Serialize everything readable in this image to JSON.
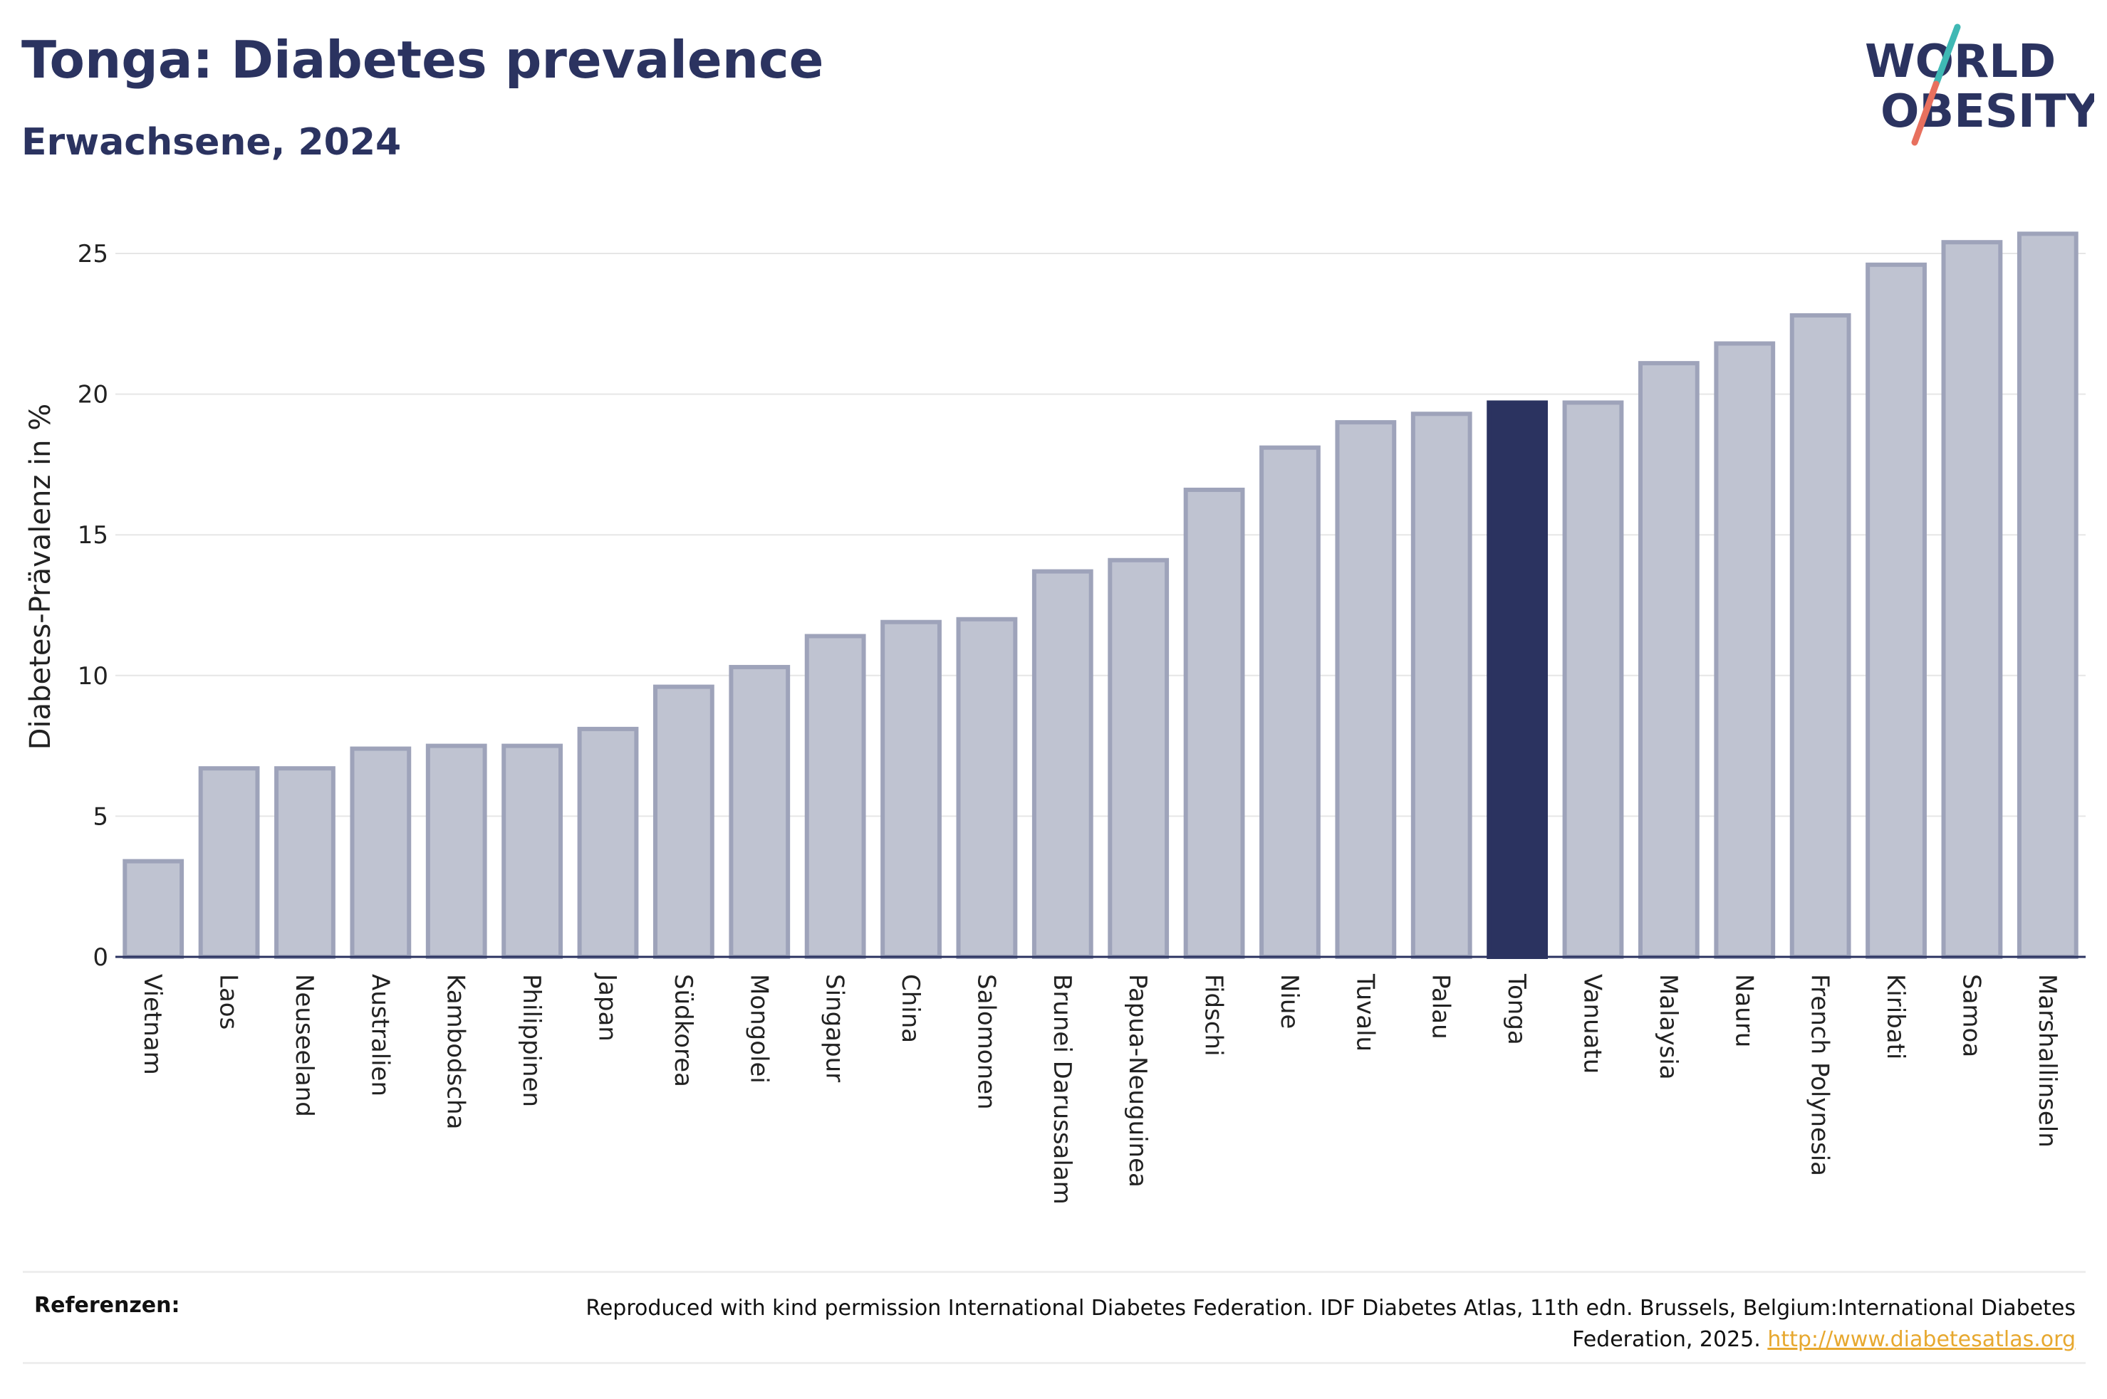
{
  "header": {
    "title": "Tonga: Diabetes prevalence",
    "subtitle": "Erwachsene, 2024"
  },
  "logo": {
    "line1": "WORLD",
    "line2": "OBESITY",
    "colors": {
      "text": "#2b3360",
      "slash_teal": "#3fb8b4",
      "slash_coral": "#e8705e"
    }
  },
  "colors": {
    "bar": "#bfc3d1",
    "bar_stroke": "#9ea3ba",
    "highlight": "#2b3360",
    "gridline": "#e6e6e6",
    "axis": "#2b3360"
  },
  "chart_data": {
    "type": "bar",
    "ylabel": "Diabetes-Prävalenz in %",
    "xlabel": "",
    "ylim": [
      0,
      26
    ],
    "yticks": [
      0,
      5,
      10,
      15,
      20,
      25
    ],
    "grid": true,
    "highlight": "Tonga",
    "categories": [
      "Vietnam",
      "Laos",
      "Neuseeland",
      "Australien",
      "Kambodscha",
      "Philippinen",
      "Japan",
      "Südkorea",
      "Mongolei",
      "Singapur",
      "China",
      "Salomonen",
      "Brunei Darussalam",
      "Papua-Neuguinea",
      "Fidschi",
      "Niue",
      "Tuvalu",
      "Palau",
      "Tonga",
      "Vanuatu",
      "Malaysia",
      "Nauru",
      "French Polynesia",
      "Kiribati",
      "Samoa",
      "Marshallinseln"
    ],
    "values": [
      3.4,
      6.7,
      6.7,
      7.4,
      7.5,
      7.5,
      8.1,
      9.6,
      10.3,
      11.4,
      11.9,
      12.0,
      13.7,
      14.1,
      16.6,
      18.1,
      19.0,
      19.3,
      19.7,
      19.7,
      21.1,
      21.8,
      22.8,
      24.6,
      25.4,
      25.7
    ]
  },
  "footer": {
    "label": "Referenzen:",
    "text": "Reproduced with kind permission International Diabetes Federation. IDF Diabetes Atlas, 11th edn. Brussels, Belgium:International Diabetes Federation, 2025.",
    "link": "http://www.diabetesatlas.org"
  }
}
